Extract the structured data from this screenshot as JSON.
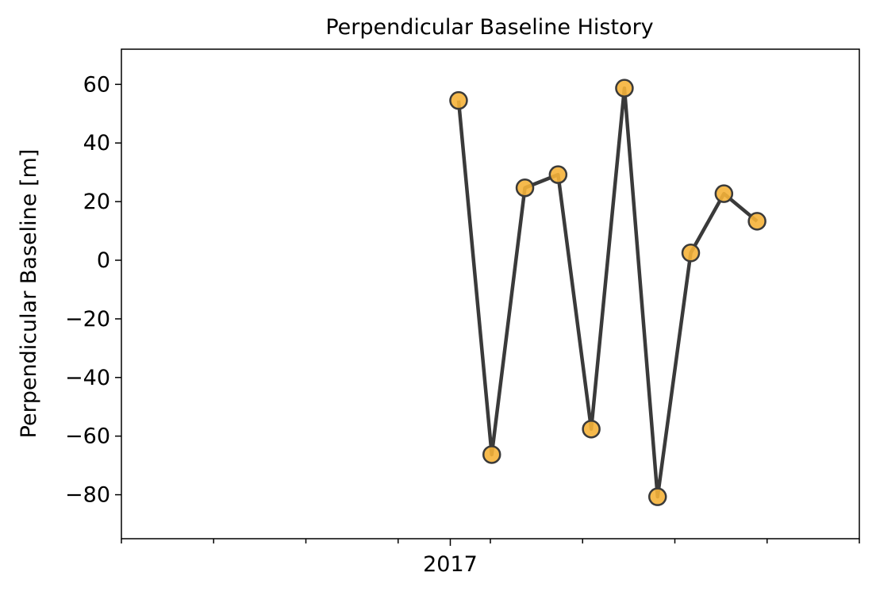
{
  "chart_data": {
    "type": "line",
    "title": "Perpendicular Baseline History",
    "xlabel": "",
    "ylabel": "Perpendicular Baseline [m]",
    "x_tick_labels": [
      "2017"
    ],
    "y_ticks": [
      60,
      40,
      20,
      0,
      -20,
      -40,
      -60,
      -80
    ],
    "y_tick_labels": [
      "60",
      "40",
      "20",
      "0",
      "−20",
      "−40",
      "−60",
      "−80"
    ],
    "ylim": [
      -95,
      72
    ],
    "grid": false,
    "series": [
      {
        "x": [
          "2017-01-04",
          "2017-01-16",
          "2017-01-28",
          "2017-02-09",
          "2017-02-21",
          "2017-03-05",
          "2017-03-17",
          "2017-03-29",
          "2017-04-10",
          "2017-04-22"
        ],
        "y": [
          54.5,
          -66.3,
          24.7,
          29.2,
          -57.6,
          58.7,
          -80.7,
          2.5,
          22.7,
          13.3
        ]
      }
    ],
    "colors": {
      "line": "#3a3a3a",
      "marker_fill": "#f5b23a",
      "marker_edge": "#3a3a3a"
    }
  }
}
